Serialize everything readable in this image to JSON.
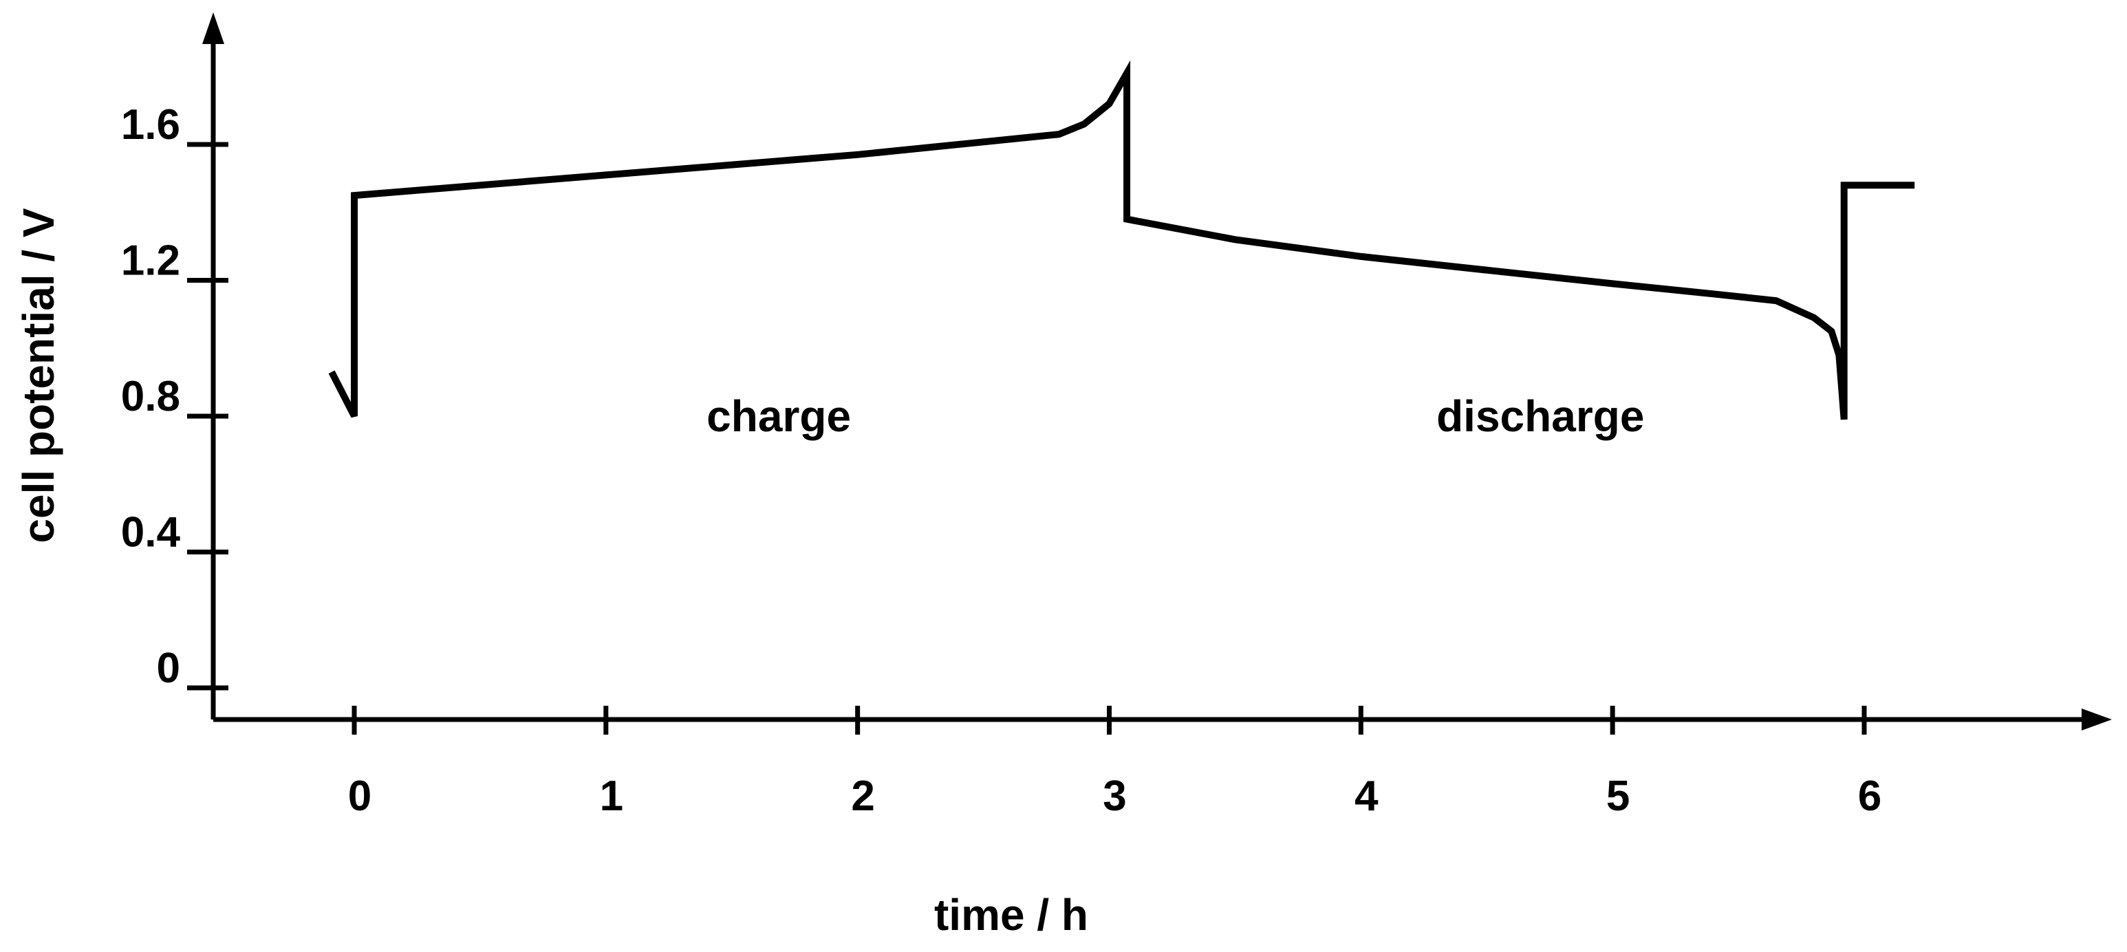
{
  "chart_data": {
    "type": "line",
    "title": "",
    "xlabel": "time / h",
    "ylabel": "cell potential / V",
    "xlim": [
      -0.55,
      7.0
    ],
    "ylim": [
      -0.1,
      1.96
    ],
    "x_ticks": [
      0,
      1,
      2,
      3,
      4,
      5,
      6
    ],
    "x_tick_labels": [
      "0",
      "1",
      "2",
      "3",
      "4",
      "5",
      "6"
    ],
    "y_ticks": [
      0,
      0.4,
      0.8,
      1.2,
      1.6
    ],
    "y_tick_labels": [
      "0",
      "0.4",
      "0.8",
      "1.2",
      "1.6"
    ],
    "grid": false,
    "legend": "none",
    "annotations": [
      {
        "text": "charge",
        "x": 1.4,
        "y": 0.8
      },
      {
        "text": "discharge",
        "x": 4.3,
        "y": 0.8
      }
    ],
    "series": [
      {
        "color": "#000000",
        "x": [
          -0.09,
          0.0,
          0.0,
          1.0,
          2.0,
          2.8,
          2.9,
          3.0,
          3.07,
          3.07,
          3.5,
          4.0,
          4.5,
          5.0,
          5.4,
          5.65,
          5.8,
          5.87,
          5.9,
          5.92,
          5.92,
          6.2
        ],
        "y": [
          0.93,
          0.8,
          1.45,
          1.51,
          1.57,
          1.63,
          1.66,
          1.72,
          1.81,
          1.38,
          1.32,
          1.27,
          1.23,
          1.19,
          1.16,
          1.14,
          1.09,
          1.05,
          0.98,
          0.79,
          1.48,
          1.48
        ]
      }
    ]
  }
}
